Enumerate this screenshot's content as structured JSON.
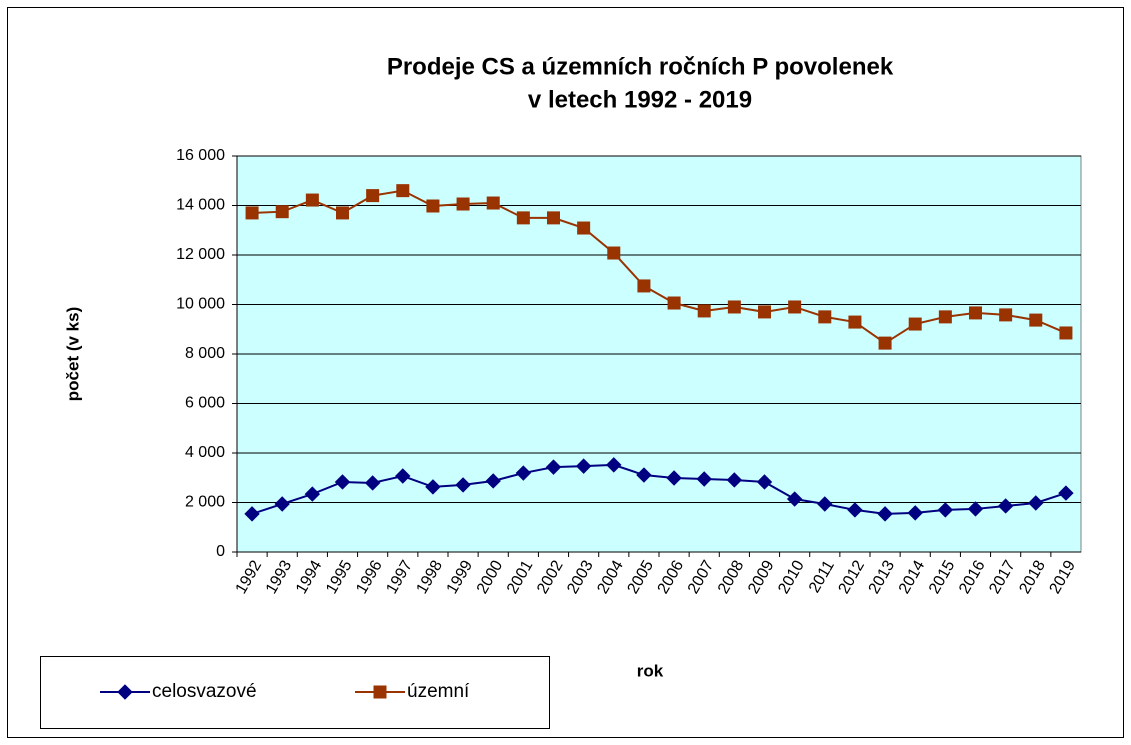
{
  "chart_data": {
    "type": "line",
    "title": [
      "Prodeje CS a územních ročních P povolenek",
      "v letech 1992 - 2019"
    ],
    "x_label": "rok",
    "y_label": "počet (v ks)",
    "categories": [
      "1992",
      "1993",
      "1994",
      "1995",
      "1996",
      "1997",
      "1998",
      "1999",
      "2000",
      "2001",
      "2002",
      "2003",
      "2004",
      "2005",
      "2006",
      "2007",
      "2008",
      "2009",
      "2010",
      "2011",
      "2012",
      "2013",
      "2014",
      "2015",
      "2016",
      "2017",
      "2018",
      "2019"
    ],
    "series": [
      {
        "name": "celosvazové",
        "color": "#000080",
        "marker": "diamond",
        "values": [
          1540,
          1940,
          2340,
          2830,
          2790,
          3070,
          2630,
          2710,
          2870,
          3190,
          3430,
          3470,
          3520,
          3110,
          2990,
          2950,
          2910,
          2830,
          2140,
          1940,
          1700,
          1540,
          1580,
          1700,
          1740,
          1860,
          1980,
          2380
        ]
      },
      {
        "name": "územní",
        "color": "#993300",
        "marker": "square",
        "values": [
          13700,
          13750,
          14220,
          13700,
          14400,
          14600,
          13980,
          14060,
          14100,
          13500,
          13500,
          13090,
          12080,
          10750,
          10060,
          9740,
          9900,
          9700,
          9900,
          9500,
          9290,
          8440,
          9210,
          9500,
          9660,
          9580,
          9370,
          8850
        ]
      }
    ],
    "ylim": [
      0,
      16000
    ],
    "yticks": [
      0,
      {
        "value": 2000,
        "label": "2 000"
      },
      {
        "value": 4000,
        "label": "4 000"
      },
      {
        "value": 6000,
        "label": "6 000"
      },
      {
        "value": 8000,
        "label": "8 000"
      },
      {
        "value": 10000,
        "label": "10 000"
      },
      {
        "value": 12000,
        "label": "12 000"
      },
      {
        "value": 14000,
        "label": "14 000"
      },
      {
        "value": 16000,
        "label": "16 000"
      }
    ],
    "grid": true,
    "plot_background": "#ccffff"
  }
}
